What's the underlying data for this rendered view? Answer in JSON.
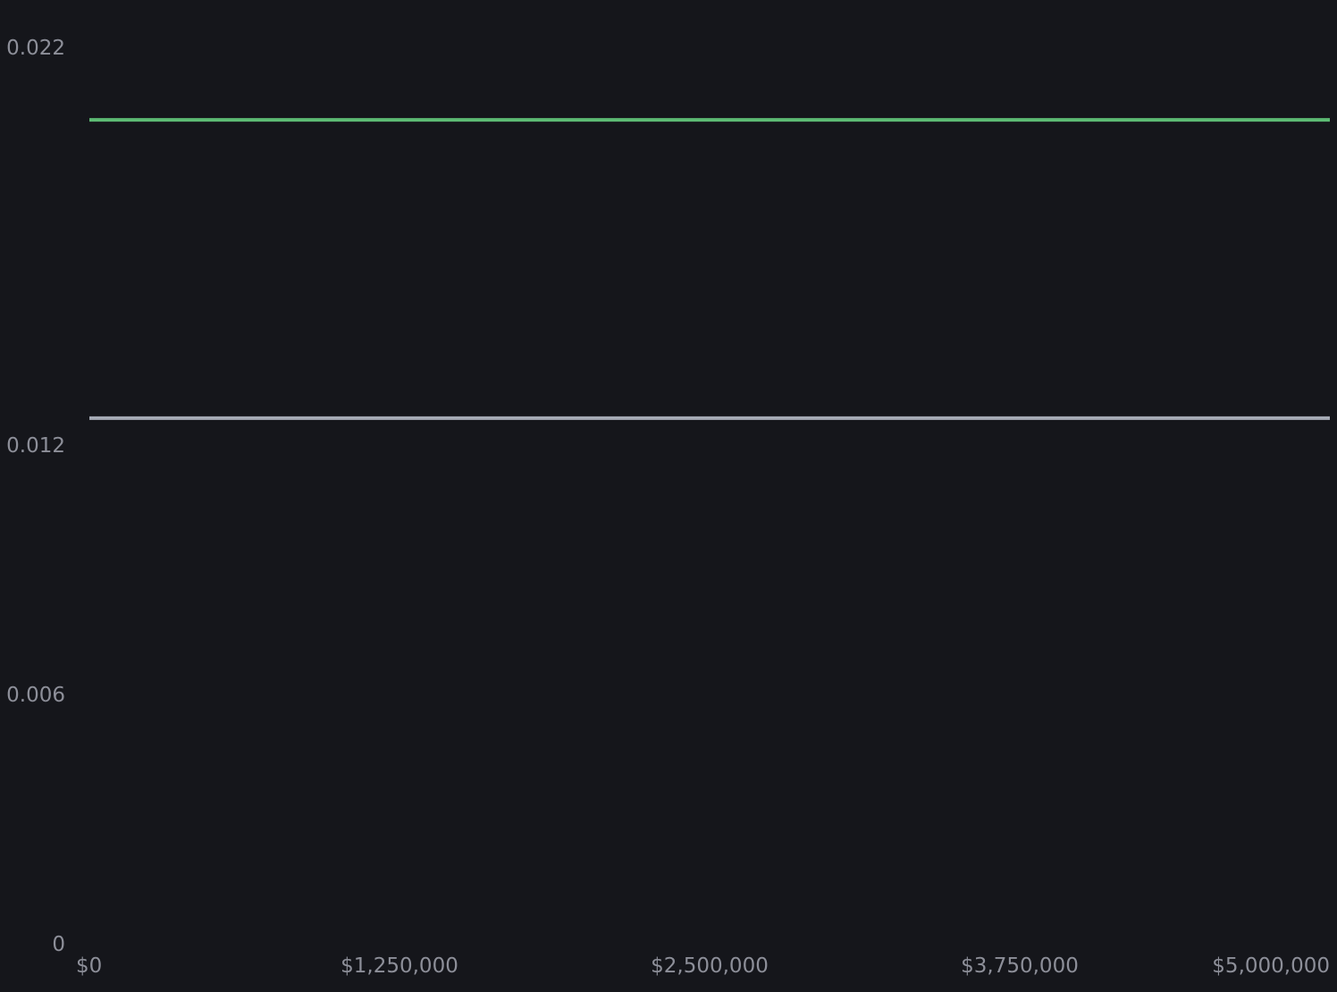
{
  "chart_data": {
    "type": "line",
    "title": "",
    "xlabel": "",
    "ylabel": "",
    "x": [
      0,
      5000000
    ],
    "series": [
      {
        "values": [
          0.0202,
          0.0202
        ],
        "color": "#5dbb74"
      },
      {
        "values": [
          0.0127,
          0.0127
        ],
        "color": "#a6abb6"
      }
    ],
    "xlim": [
      0,
      5000000
    ],
    "ylim": [
      0,
      0.0224
    ],
    "x_ticks": [
      {
        "value": 0,
        "label": "$0"
      },
      {
        "value": 1250000,
        "label": "$1,250,000"
      },
      {
        "value": 2500000,
        "label": "$2,500,000"
      },
      {
        "value": 3750000,
        "label": "$3,750,000"
      },
      {
        "value": 5000000,
        "label": "$5,000,000"
      }
    ],
    "y_ticks": [
      {
        "value": 0,
        "label": "0"
      },
      {
        "value": 0.006,
        "label": "0.006"
      },
      {
        "value": 0.012,
        "label": "0.012"
      },
      {
        "value": 0.022,
        "label": "0.022"
      }
    ],
    "grid": false,
    "legend": "none",
    "background": "#15161b",
    "tick_color": "#8d8f99"
  }
}
